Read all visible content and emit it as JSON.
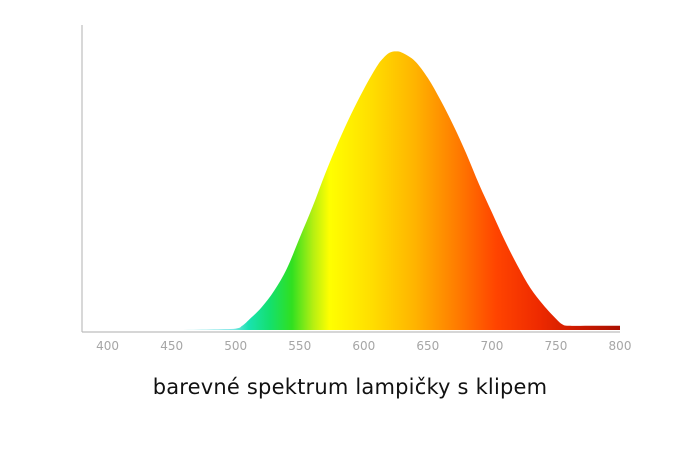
{
  "chart_data": {
    "type": "area",
    "caption": "barevné spektrum lampičky s klipem",
    "xlim": [
      380,
      800
    ],
    "ylim": [
      0,
      1
    ],
    "x_ticks": [
      400,
      450,
      500,
      550,
      600,
      650,
      700,
      750,
      800
    ],
    "grid": false,
    "fill": "wavelength-colored gradient (cyan → green → yellow → orange → red)",
    "series": [
      {
        "x": [
          380,
          400,
          450,
          480,
          500,
          505,
          510,
          520,
          530,
          540,
          550,
          560,
          570,
          580,
          590,
          600,
          610,
          615,
          620,
          625,
          630,
          640,
          650,
          660,
          670,
          680,
          690,
          700,
          710,
          720,
          730,
          740,
          750,
          755,
          760,
          780,
          800
        ],
        "values": [
          0.0,
          0.0,
          0.0,
          0.002,
          0.005,
          0.015,
          0.035,
          0.08,
          0.14,
          0.22,
          0.33,
          0.44,
          0.56,
          0.67,
          0.77,
          0.86,
          0.94,
          0.97,
          0.99,
          0.995,
          0.99,
          0.96,
          0.9,
          0.82,
          0.73,
          0.63,
          0.52,
          0.42,
          0.32,
          0.23,
          0.15,
          0.09,
          0.04,
          0.02,
          0.015,
          0.015,
          0.015
        ]
      }
    ]
  }
}
